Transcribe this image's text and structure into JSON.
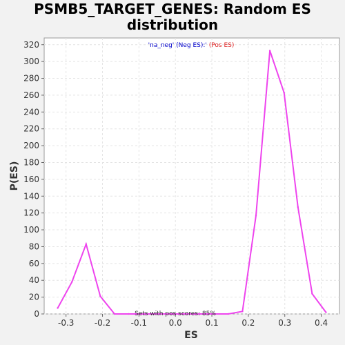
{
  "chart_data": {
    "type": "line",
    "title_line1": "PSMB5_TARGET_GENES: Random ES",
    "title_line2": "distribution",
    "xlabel": "ES",
    "ylabel": "P(ES)",
    "xlim": [
      -0.36,
      0.45
    ],
    "ylim": [
      0,
      328
    ],
    "x_ticks": [
      "-0.3",
      "-0.2",
      "-0.1",
      "0.0",
      "0.1",
      "0.2",
      "0.3",
      "0.4"
    ],
    "x_tick_values": [
      -0.3,
      -0.2,
      -0.1,
      0.0,
      0.1,
      0.2,
      0.3,
      0.4
    ],
    "y_ticks": [
      "0",
      "20",
      "40",
      "60",
      "80",
      "100",
      "120",
      "140",
      "160",
      "180",
      "200",
      "220",
      "240",
      "260",
      "280",
      "300",
      "320"
    ],
    "y_tick_values": [
      0,
      20,
      40,
      60,
      80,
      100,
      120,
      140,
      160,
      180,
      200,
      220,
      240,
      260,
      280,
      300,
      320
    ],
    "grid": true,
    "series": [
      {
        "color": "#ee44ee",
        "x": [
          -0.323,
          -0.284,
          -0.245,
          -0.206,
          -0.167,
          -0.128,
          -0.089,
          -0.05,
          -0.011,
          0.028,
          0.067,
          0.106,
          0.145,
          0.184,
          0.221,
          0.259,
          0.298,
          0.336,
          0.375,
          0.413
        ],
        "y": [
          7,
          38,
          83,
          21,
          0,
          0,
          0,
          0,
          0,
          0,
          0,
          0,
          0,
          3,
          117,
          313,
          263,
          127,
          24,
          2
        ]
      }
    ],
    "legend": {
      "neg_text": "'na_neg' (Neg ES)",
      "separator": ":'",
      "pos_text": " (Pos ES)",
      "neg_color": "#0000cc",
      "pos_color": "#dd2222"
    },
    "annotation": "Sets with pos scores: 85%"
  }
}
